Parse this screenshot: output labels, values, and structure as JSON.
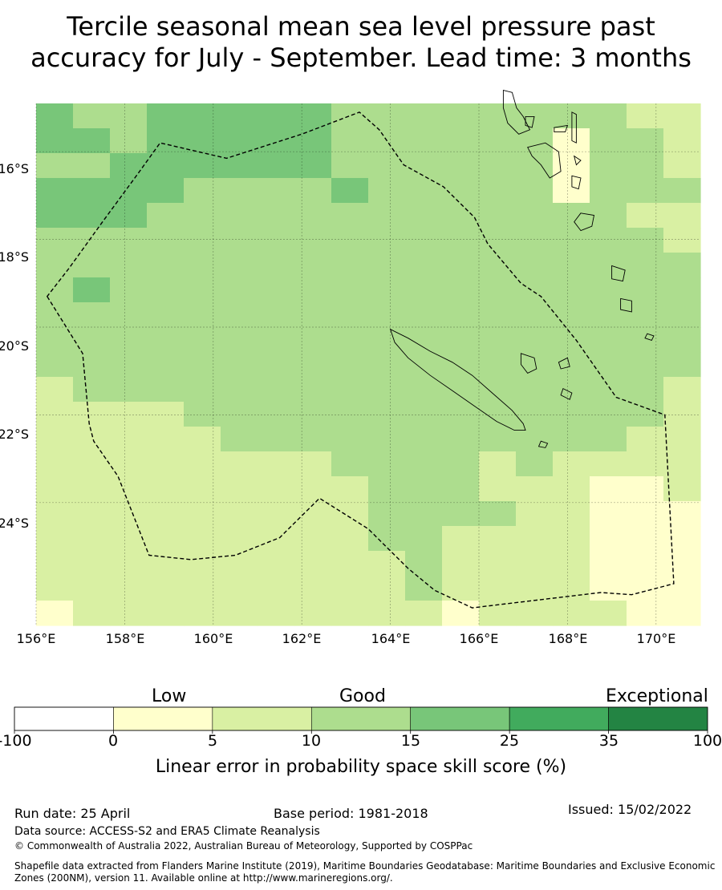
{
  "title": {
    "line1": "Tercile seasonal mean sea level pressure past",
    "line2": "accuracy for July - September. Lead time: 3 months"
  },
  "map": {
    "lat_labels": [
      "16°S",
      "18°S",
      "20°S",
      "22°S",
      "24°S"
    ],
    "lon_labels": [
      "156°E",
      "158°E",
      "160°E",
      "162°E",
      "164°E",
      "166°E",
      "168°E",
      "170°E"
    ],
    "lon_range": [
      156,
      171
    ],
    "lat_range": [
      -26.8,
      -14.9
    ],
    "skill_grid_note_rows": "rows from north to south, values = colorbar class index 0..6",
    "skill_grid": [
      [
        4,
        3,
        3,
        4,
        4,
        4,
        4,
        4,
        3,
        3,
        3,
        3,
        3,
        3,
        3,
        3,
        2,
        2
      ],
      [
        4,
        4,
        3,
        4,
        4,
        4,
        4,
        4,
        3,
        3,
        3,
        3,
        3,
        3,
        1,
        3,
        3,
        2
      ],
      [
        3,
        3,
        4,
        4,
        4,
        4,
        4,
        4,
        3,
        3,
        3,
        3,
        3,
        3,
        1,
        3,
        3,
        2
      ],
      [
        4,
        4,
        4,
        4,
        3,
        3,
        3,
        3,
        4,
        3,
        3,
        3,
        3,
        3,
        1,
        3,
        3,
        3
      ],
      [
        4,
        4,
        4,
        3,
        3,
        3,
        3,
        3,
        3,
        3,
        3,
        3,
        3,
        3,
        3,
        3,
        2,
        2
      ],
      [
        3,
        3,
        3,
        3,
        3,
        3,
        3,
        3,
        3,
        3,
        3,
        3,
        3,
        3,
        3,
        3,
        3,
        2
      ],
      [
        3,
        3,
        3,
        3,
        3,
        3,
        3,
        3,
        3,
        3,
        3,
        3,
        3,
        3,
        3,
        3,
        3,
        3
      ],
      [
        3,
        4,
        3,
        3,
        3,
        3,
        3,
        3,
        3,
        3,
        3,
        3,
        3,
        3,
        3,
        3,
        3,
        3
      ],
      [
        3,
        3,
        3,
        3,
        3,
        3,
        3,
        3,
        3,
        3,
        3,
        3,
        3,
        3,
        3,
        3,
        3,
        3
      ],
      [
        3,
        3,
        3,
        3,
        3,
        3,
        3,
        3,
        3,
        3,
        3,
        3,
        3,
        3,
        3,
        3,
        3,
        3
      ],
      [
        3,
        3,
        3,
        3,
        3,
        3,
        3,
        3,
        3,
        3,
        3,
        3,
        3,
        3,
        3,
        3,
        3,
        3
      ],
      [
        2,
        3,
        3,
        3,
        3,
        3,
        3,
        3,
        3,
        3,
        3,
        3,
        3,
        3,
        3,
        3,
        3,
        2
      ],
      [
        2,
        2,
        2,
        2,
        3,
        3,
        3,
        3,
        3,
        3,
        3,
        3,
        3,
        3,
        3,
        3,
        3,
        2
      ],
      [
        2,
        2,
        2,
        2,
        2,
        3,
        3,
        3,
        3,
        3,
        3,
        3,
        3,
        3,
        3,
        3,
        2,
        2
      ],
      [
        2,
        2,
        2,
        2,
        2,
        2,
        2,
        2,
        3,
        3,
        3,
        3,
        2,
        3,
        2,
        2,
        2,
        2
      ],
      [
        2,
        2,
        2,
        2,
        2,
        2,
        2,
        2,
        2,
        3,
        3,
        3,
        2,
        2,
        2,
        1,
        1,
        2
      ],
      [
        2,
        2,
        2,
        2,
        2,
        2,
        2,
        2,
        2,
        3,
        3,
        3,
        3,
        2,
        2,
        1,
        1,
        1
      ],
      [
        2,
        2,
        2,
        2,
        2,
        2,
        2,
        2,
        2,
        3,
        3,
        2,
        2,
        2,
        2,
        1,
        1,
        1
      ],
      [
        2,
        2,
        2,
        2,
        2,
        2,
        2,
        2,
        2,
        2,
        3,
        2,
        2,
        2,
        2,
        1,
        1,
        1
      ],
      [
        2,
        2,
        2,
        2,
        2,
        2,
        2,
        2,
        2,
        2,
        3,
        2,
        2,
        2,
        2,
        1,
        1,
        1
      ],
      [
        1,
        2,
        2,
        2,
        2,
        2,
        2,
        2,
        2,
        2,
        2,
        1,
        2,
        2,
        2,
        2,
        1,
        1
      ]
    ],
    "boundary_lonlat": [
      [
        156.25,
        -19.3
      ],
      [
        157.05,
        -20.6
      ],
      [
        157.2,
        -22.2
      ],
      [
        157.3,
        -22.6
      ],
      [
        157.85,
        -23.4
      ],
      [
        158.55,
        -25.2
      ],
      [
        159.5,
        -25.3
      ],
      [
        160.5,
        -25.2
      ],
      [
        161.5,
        -24.8
      ],
      [
        162.4,
        -23.9
      ],
      [
        163.5,
        -24.6
      ],
      [
        164.4,
        -25.5
      ],
      [
        165.0,
        -26.0
      ],
      [
        165.85,
        -26.4
      ],
      [
        167.5,
        -26.2
      ],
      [
        168.75,
        -26.05
      ],
      [
        169.45,
        -26.1
      ],
      [
        170.4,
        -25.85
      ],
      [
        170.2,
        -22.0
      ],
      [
        169.1,
        -21.6
      ],
      [
        168.2,
        -20.3
      ],
      [
        167.4,
        -19.3
      ],
      [
        166.95,
        -19.0
      ],
      [
        166.2,
        -18.1
      ],
      [
        165.9,
        -17.5
      ],
      [
        165.2,
        -16.8
      ],
      [
        164.3,
        -16.3
      ],
      [
        163.75,
        -15.5
      ],
      [
        163.3,
        -15.1
      ],
      [
        162.0,
        -15.6
      ],
      [
        160.3,
        -16.15
      ],
      [
        158.8,
        -15.8
      ],
      [
        158.3,
        -16.5
      ],
      [
        157.5,
        -17.6
      ],
      [
        156.75,
        -18.65
      ]
    ],
    "new_caledonia_lonlat": [
      [
        164.0,
        -20.05
      ],
      [
        164.4,
        -20.25
      ],
      [
        164.9,
        -20.55
      ],
      [
        165.4,
        -20.8
      ],
      [
        165.85,
        -21.1
      ],
      [
        166.3,
        -21.5
      ],
      [
        166.75,
        -21.9
      ],
      [
        167.0,
        -22.2
      ],
      [
        167.05,
        -22.35
      ],
      [
        166.8,
        -22.35
      ],
      [
        166.4,
        -22.15
      ],
      [
        165.9,
        -21.8
      ],
      [
        165.4,
        -21.45
      ],
      [
        164.9,
        -21.1
      ],
      [
        164.4,
        -20.7
      ],
      [
        164.1,
        -20.35
      ]
    ],
    "vanuatu_islands_lonlat": [
      [
        [
          166.55,
          -14.6
        ],
        [
          166.75,
          -14.65
        ],
        [
          166.85,
          -15.0
        ],
        [
          167.0,
          -15.2
        ],
        [
          167.15,
          -15.5
        ],
        [
          166.9,
          -15.6
        ],
        [
          166.65,
          -15.35
        ],
        [
          166.55,
          -15.0
        ]
      ],
      [
        [
          167.05,
          -15.2
        ],
        [
          167.25,
          -15.2
        ],
        [
          167.2,
          -15.45
        ],
        [
          167.05,
          -15.4
        ]
      ],
      [
        [
          168.1,
          -15.1
        ],
        [
          168.2,
          -15.15
        ],
        [
          168.2,
          -15.8
        ],
        [
          168.1,
          -15.75
        ]
      ],
      [
        [
          167.7,
          -15.45
        ],
        [
          168.0,
          -15.4
        ],
        [
          167.95,
          -15.55
        ],
        [
          167.7,
          -15.55
        ]
      ],
      [
        [
          167.1,
          -15.9
        ],
        [
          167.5,
          -15.8
        ],
        [
          167.8,
          -16.0
        ],
        [
          167.85,
          -16.45
        ],
        [
          167.6,
          -16.6
        ],
        [
          167.4,
          -16.3
        ],
        [
          167.2,
          -16.1
        ]
      ],
      [
        [
          168.15,
          -16.1
        ],
        [
          168.3,
          -16.2
        ],
        [
          168.2,
          -16.3
        ]
      ],
      [
        [
          168.1,
          -16.55
        ],
        [
          168.3,
          -16.6
        ],
        [
          168.25,
          -16.85
        ],
        [
          168.1,
          -16.8
        ]
      ],
      [
        [
          168.3,
          -17.4
        ],
        [
          168.6,
          -17.45
        ],
        [
          168.55,
          -17.7
        ],
        [
          168.3,
          -17.8
        ],
        [
          168.15,
          -17.6
        ]
      ],
      [
        [
          169.0,
          -18.6
        ],
        [
          169.3,
          -18.7
        ],
        [
          169.25,
          -18.95
        ],
        [
          169.0,
          -18.9
        ]
      ],
      [
        [
          169.2,
          -19.35
        ],
        [
          169.45,
          -19.4
        ],
        [
          169.45,
          -19.65
        ],
        [
          169.2,
          -19.6
        ]
      ],
      [
        [
          169.8,
          -20.15
        ],
        [
          169.95,
          -20.2
        ],
        [
          169.9,
          -20.3
        ],
        [
          169.75,
          -20.25
        ]
      ]
    ],
    "loyalty_islands_lonlat": [
      [
        [
          166.95,
          -20.6
        ],
        [
          167.25,
          -20.7
        ],
        [
          167.3,
          -20.95
        ],
        [
          167.1,
          -21.05
        ],
        [
          166.95,
          -20.85
        ]
      ],
      [
        [
          167.8,
          -20.8
        ],
        [
          168.0,
          -20.7
        ],
        [
          168.05,
          -20.9
        ],
        [
          167.85,
          -20.95
        ]
      ],
      [
        [
          167.9,
          -21.4
        ],
        [
          168.1,
          -21.5
        ],
        [
          168.05,
          -21.65
        ],
        [
          167.85,
          -21.55
        ]
      ],
      [
        [
          167.4,
          -22.6
        ],
        [
          167.55,
          -22.65
        ],
        [
          167.5,
          -22.75
        ],
        [
          167.35,
          -22.72
        ]
      ]
    ]
  },
  "legend": {
    "colors": [
      "#ffffff",
      "#ffffcc",
      "#d9f0a3",
      "#addd8e",
      "#78c679",
      "#41ab5d",
      "#238443"
    ],
    "ticks": [
      "-100",
      "0",
      "5",
      "10",
      "15",
      "25",
      "35",
      "100"
    ],
    "category_low": "Low",
    "category_good": "Good",
    "category_exceptional": "Exceptional",
    "axis_label": "Linear error in probability space skill score (%)"
  },
  "footer": {
    "run_date": "Run date: 25 April",
    "base_period": "Base period: 1981-2018",
    "issued": "Issued: 15/02/2022",
    "data_source": "Data source: ACCESS-S2 and ERA5 Climate Reanalysis",
    "copyright": "© Commonwealth of Australia 2022, Australian Bureau of Meteorology, Supported by COSPPac",
    "shapefile_line1": "Shapefile data extracted from Flanders Marine Institute (2019), Maritime Boundaries Geodatabase: Maritime Boundaries and Exclusive Economic",
    "shapefile_line2": "Zones (200NM), version 11. Available online at http://www.marineregions.org/."
  }
}
